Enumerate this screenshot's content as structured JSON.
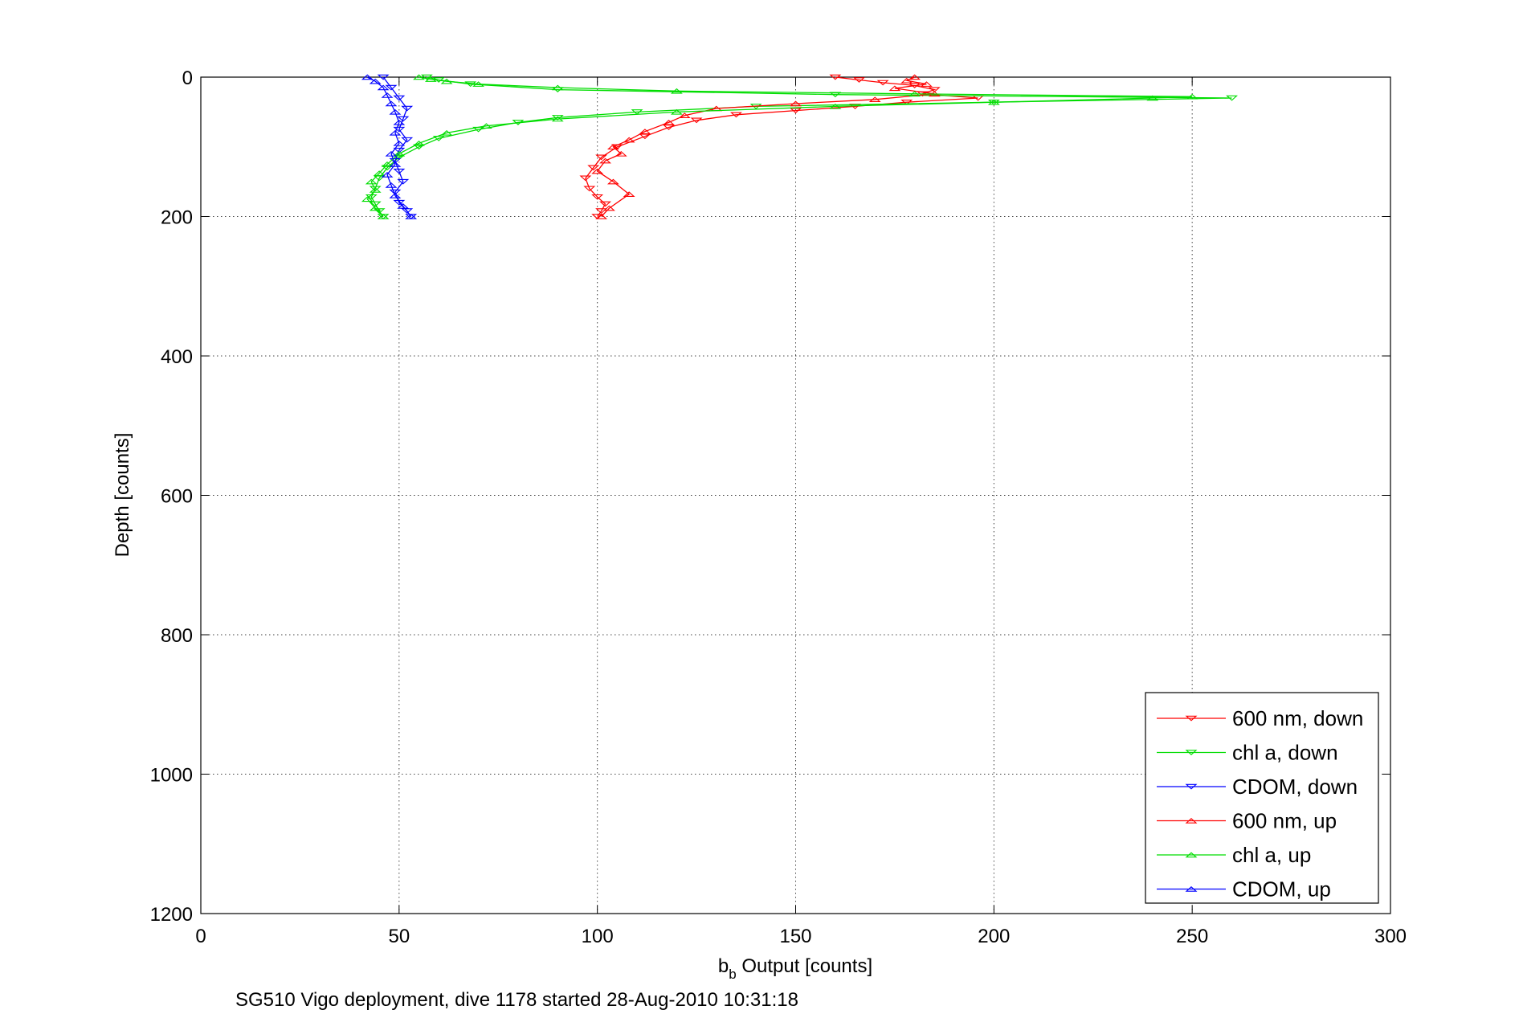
{
  "chart_data": {
    "type": "line",
    "title": "",
    "xlabel": "b_b Output [counts]",
    "xlabel_main": "b",
    "xlabel_sub": "b",
    "xlabel_rest": " Output [counts]",
    "ylabel": "Depth [counts]",
    "caption": "SG510 Vigo deployment, dive 1178 started 28-Aug-2010 10:31:18",
    "xlim": [
      0,
      300
    ],
    "ylim": [
      0,
      1200
    ],
    "y_reversed": true,
    "grid": true,
    "legend_position": "bottom-right",
    "xticks": [
      0,
      50,
      100,
      150,
      200,
      250,
      300
    ],
    "yticks": [
      0,
      200,
      400,
      600,
      800,
      1000,
      1200
    ],
    "series": [
      {
        "name": "600 nm, down",
        "color": "#ff0000",
        "marker": "triangle-down",
        "x": [
          160,
          166,
          172,
          180,
          185,
          182,
          196,
          178,
          165,
          150,
          135,
          125,
          118,
          112,
          105,
          101,
          99,
          97,
          98,
          100,
          102,
          101,
          100
        ],
        "y": [
          0,
          4,
          8,
          12,
          18,
          24,
          30,
          36,
          42,
          48,
          54,
          62,
          72,
          85,
          100,
          115,
          130,
          145,
          160,
          172,
          182,
          192,
          200
        ]
      },
      {
        "name": "chl a, down",
        "color": "#00dd00",
        "marker": "triangle-down",
        "x": [
          57,
          60,
          68,
          90,
          160,
          260,
          200,
          140,
          110,
          90,
          80,
          70,
          60,
          55,
          50,
          47,
          45,
          44,
          43,
          44,
          45,
          46
        ],
        "y": [
          0,
          4,
          10,
          18,
          25,
          30,
          36,
          42,
          50,
          58,
          65,
          75,
          88,
          100,
          115,
          130,
          145,
          160,
          172,
          182,
          192,
          200
        ]
      },
      {
        "name": "CDOM, down",
        "color": "#0000ff",
        "marker": "triangle-down",
        "x": [
          46,
          48,
          50,
          52,
          51,
          50,
          52,
          50,
          49,
          50,
          51,
          49,
          50,
          52,
          53
        ],
        "y": [
          0,
          15,
          30,
          45,
          60,
          75,
          90,
          105,
          120,
          135,
          150,
          165,
          180,
          192,
          200
        ]
      },
      {
        "name": "600 nm, up",
        "color": "#ff0000",
        "marker": "triangle-up",
        "x": [
          101,
          103,
          108,
          104,
          100,
          102,
          106,
          104,
          108,
          112,
          118,
          122,
          130,
          150,
          170,
          185,
          175,
          183,
          178,
          180
        ],
        "y": [
          200,
          188,
          168,
          150,
          135,
          120,
          110,
          100,
          90,
          78,
          65,
          55,
          45,
          38,
          32,
          24,
          16,
          10,
          5,
          0
        ]
      },
      {
        "name": "chl a, up",
        "color": "#00dd00",
        "marker": "triangle-up",
        "x": [
          46,
          44,
          42,
          44,
          43,
          45,
          47,
          50,
          55,
          62,
          72,
          90,
          120,
          160,
          200,
          240,
          250,
          180,
          120,
          90,
          70,
          62,
          58,
          55
        ],
        "y": [
          200,
          188,
          175,
          162,
          150,
          138,
          125,
          110,
          95,
          80,
          70,
          60,
          50,
          42,
          36,
          30,
          28,
          24,
          20,
          15,
          10,
          6,
          3,
          0
        ]
      },
      {
        "name": "CDOM, up",
        "color": "#0000ff",
        "marker": "triangle-up",
        "x": [
          53,
          51,
          49,
          48,
          47,
          49,
          48,
          50,
          49,
          50,
          49,
          48,
          47,
          46,
          44,
          42
        ],
        "y": [
          200,
          185,
          170,
          155,
          140,
          125,
          110,
          95,
          80,
          65,
          50,
          38,
          26,
          15,
          6,
          0
        ]
      }
    ]
  }
}
